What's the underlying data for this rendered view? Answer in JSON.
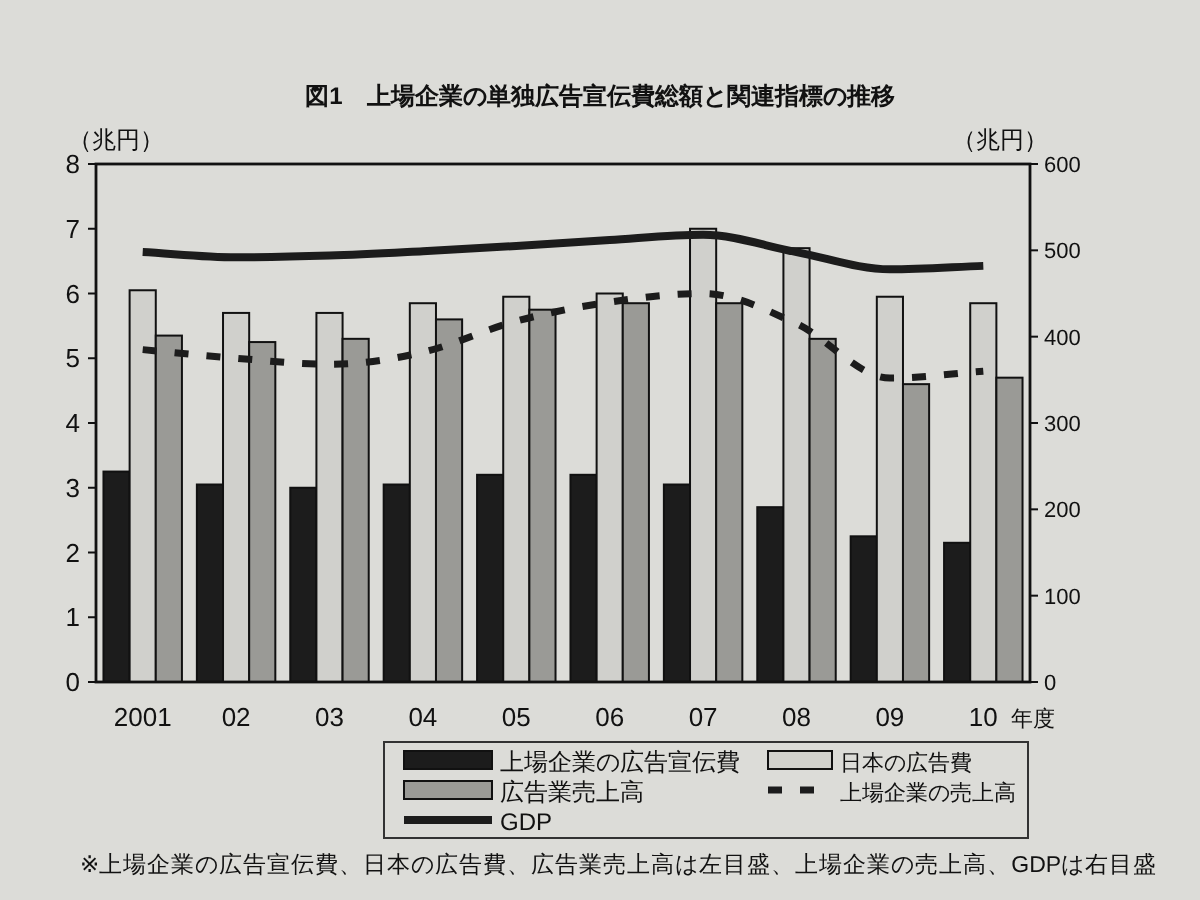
{
  "chart_data": {
    "type": "bar",
    "title": "図1　上場企業の単独広告宣伝費総額と関連指標の推移",
    "ylabel": "（兆円）",
    "y2label": "（兆円）",
    "xlabel": "年度",
    "categories": [
      "2001",
      "02",
      "03",
      "04",
      "05",
      "06",
      "07",
      "08",
      "09",
      "10"
    ],
    "series": [
      {
        "name": "上場企業の広告宣伝費",
        "color": "#1c1c1c",
        "values": [
          3.25,
          3.05,
          3.0,
          3.05,
          3.2,
          3.2,
          3.05,
          2.7,
          2.25,
          2.15
        ]
      },
      {
        "name": "日本の広告費",
        "color": "#d0d0cc",
        "values": [
          6.05,
          5.7,
          5.7,
          5.85,
          5.95,
          6.0,
          7.0,
          6.7,
          5.95,
          5.85
        ]
      },
      {
        "name": "広告業売上高",
        "color": "#9a9a96",
        "values": [
          5.35,
          5.25,
          5.3,
          5.6,
          5.75,
          5.85,
          5.85,
          5.3,
          4.6,
          4.7
        ]
      },
      {
        "name": "上場企業の売上高",
        "type": "line",
        "axis": "y2",
        "line_style": "dashed",
        "color": "#1c1c1c",
        "values": [
          385,
          375,
          368,
          382,
          418,
          440,
          450,
          415,
          352,
          360
        ]
      },
      {
        "name": "GDP",
        "type": "line",
        "axis": "y2",
        "line_style": "solid",
        "color": "#1c1c1c",
        "values": [
          498,
          492,
          494,
          499,
          505,
          512,
          518,
          498,
          478,
          482
        ]
      }
    ],
    "ylim": [
      0,
      8
    ],
    "yticks": [
      0,
      1,
      2,
      3,
      4,
      5,
      6,
      7,
      8
    ],
    "y2lim": [
      0,
      600
    ],
    "y2ticks": [
      0,
      100,
      200,
      300,
      400,
      500,
      600
    ],
    "legend": "bottom",
    "grid": false,
    "annotations": [
      "※上場企業の広告宣伝費、日本の広告費、広告業売上高は左目盛、上場企業の売上高、GDPは右目盛"
    ]
  }
}
